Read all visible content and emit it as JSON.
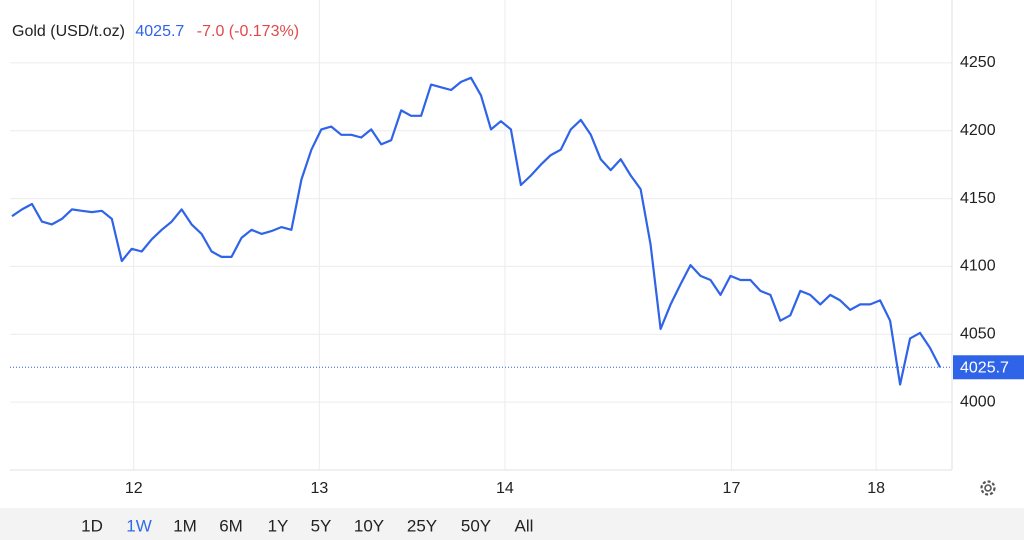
{
  "chart_data": {
    "type": "line",
    "title": "Gold (USD/t.oz)",
    "last_price": 4025.7,
    "change": "-7.0 (-0.173%)",
    "x": [
      0,
      1,
      2,
      3,
      4,
      5,
      6,
      7,
      8,
      9,
      10,
      11,
      12,
      13,
      14,
      15,
      16,
      17,
      18,
      19,
      20,
      21,
      22,
      23,
      24,
      25,
      26,
      27,
      28,
      29,
      30,
      31,
      32,
      33,
      34,
      35,
      36,
      37,
      38,
      39,
      40,
      41,
      42,
      43,
      44,
      45,
      46,
      47,
      48,
      49,
      50,
      51,
      52,
      53,
      54,
      55,
      56,
      57,
      58,
      59,
      60,
      61,
      62,
      63,
      64,
      65,
      66,
      67,
      68,
      69,
      70,
      71,
      72,
      73,
      74,
      75,
      76,
      77,
      78,
      79,
      80,
      81,
      82,
      83,
      84,
      85,
      86,
      87,
      88,
      89,
      90,
      91,
      92,
      93
    ],
    "series": [
      {
        "name": "Gold (USD/t.oz)",
        "color": "#2f64e8",
        "values": [
          4137,
          4142,
          4146,
          4133,
          4131,
          4135,
          4142,
          4141,
          4140,
          4141,
          4135,
          4104,
          4113,
          4111,
          4120,
          4127,
          4133,
          4142,
          4131,
          4124,
          4111,
          4107,
          4107,
          4121,
          4127,
          4124,
          4126,
          4129,
          4127,
          4164,
          4186,
          4201,
          4203,
          4197,
          4197,
          4195,
          4201,
          4190,
          4193,
          4215,
          4211,
          4211,
          4234,
          4232,
          4230,
          4236,
          4239,
          4226,
          4201,
          4207,
          4201,
          4160,
          4167,
          4175,
          4182,
          4186,
          4201,
          4208,
          4197,
          4179,
          4171,
          4179,
          4167,
          4157,
          4116,
          4054,
          4072,
          4087,
          4101,
          4093,
          4090,
          4079,
          4093,
          4090,
          4090,
          4082,
          4079,
          4060,
          4064,
          4082,
          4079,
          4072,
          4079,
          4075,
          4068,
          4072,
          4072,
          4075,
          4060,
          4013,
          4047,
          4051,
          4040,
          4025.7
        ]
      }
    ],
    "xlim": [
      0,
      93
    ],
    "xticks": [
      {
        "value": 12.2,
        "label": "12"
      },
      {
        "value": 30.8,
        "label": "13"
      },
      {
        "value": 49.4,
        "label": "14"
      },
      {
        "value": 72.1,
        "label": "17"
      },
      {
        "value": 86.6,
        "label": "18"
      }
    ],
    "ylim": [
      3950,
      4300
    ],
    "yticks": [
      4000,
      4050,
      4100,
      4150,
      4200,
      4250
    ],
    "grid": true,
    "ranges": [
      "1D",
      "1W",
      "1M",
      "6M",
      "1Y",
      "5Y",
      "10Y",
      "25Y",
      "50Y",
      "All"
    ]
  }
}
